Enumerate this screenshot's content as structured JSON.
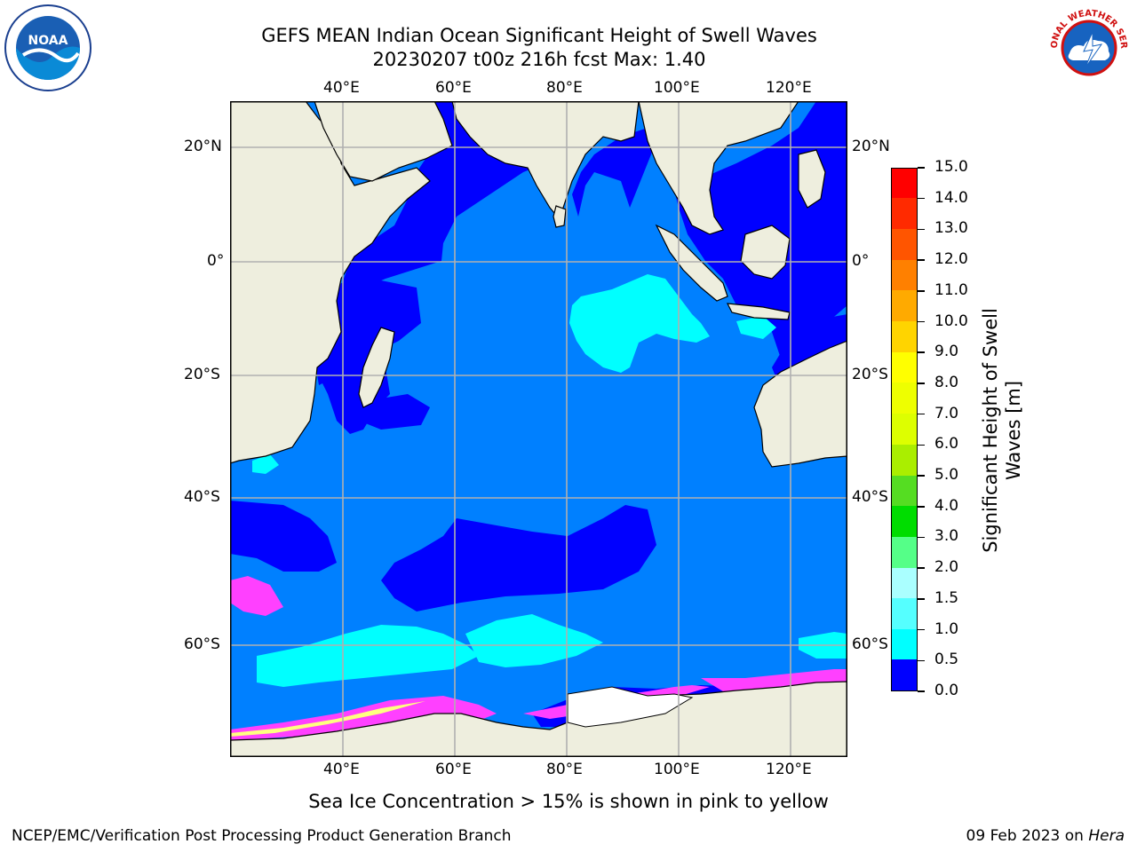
{
  "title": {
    "line1": "GEFS MEAN Indian Ocean Significant Height of Swell Waves",
    "line2": "20230207 t00z 216h fcst   Max: 1.40"
  },
  "logos": {
    "left": "NOAA",
    "right": "NATIONAL WEATHER SERVICE"
  },
  "map": {
    "lon_labels": [
      "40°E",
      "60°E",
      "80°E",
      "100°E",
      "120°E"
    ],
    "lat_labels": [
      "20°N",
      "0°",
      "20°S",
      "40°S",
      "60°S"
    ],
    "colors": {
      "land": "#eeeede",
      "ocean_low": "#0000ff",
      "ocean_mid": "#0080ff",
      "ocean_high": "#00ffff",
      "ice_pink": "#ff40ff",
      "ice_yellow": "#ffff80",
      "grid": "#b0b0b0"
    }
  },
  "colorbar": {
    "label": "Significant Height of Swell Waves [m]",
    "label_line1": "Significant Height of Swell",
    "label_line2": "Waves [m]",
    "ticks": [
      "15.0",
      "14.0",
      "13.0",
      "12.0",
      "11.0",
      "10.0",
      "9.0",
      "8.0",
      "7.0",
      "6.0",
      "5.0",
      "4.0",
      "3.0",
      "2.0",
      "1.5",
      "1.0",
      "0.5",
      "0.0"
    ],
    "colors": [
      "#ff0000",
      "#ff2a00",
      "#ff5500",
      "#ff8000",
      "#ffaa00",
      "#ffd400",
      "#ffff00",
      "#eeff00",
      "#ddff00",
      "#aaee00",
      "#55dd22",
      "#00dd00",
      "#55ff88",
      "#aaffff",
      "#55ffff",
      "#00ffff",
      "#0080ff",
      "#0000ff"
    ]
  },
  "caption": "Sea Ice Concentration > 15% is shown in pink to yellow",
  "footer": {
    "left": "NCEP/EMC/Verification Post Processing Product Generation Branch",
    "right_date": "09 Feb 2023 on ",
    "right_host": "Hera"
  }
}
